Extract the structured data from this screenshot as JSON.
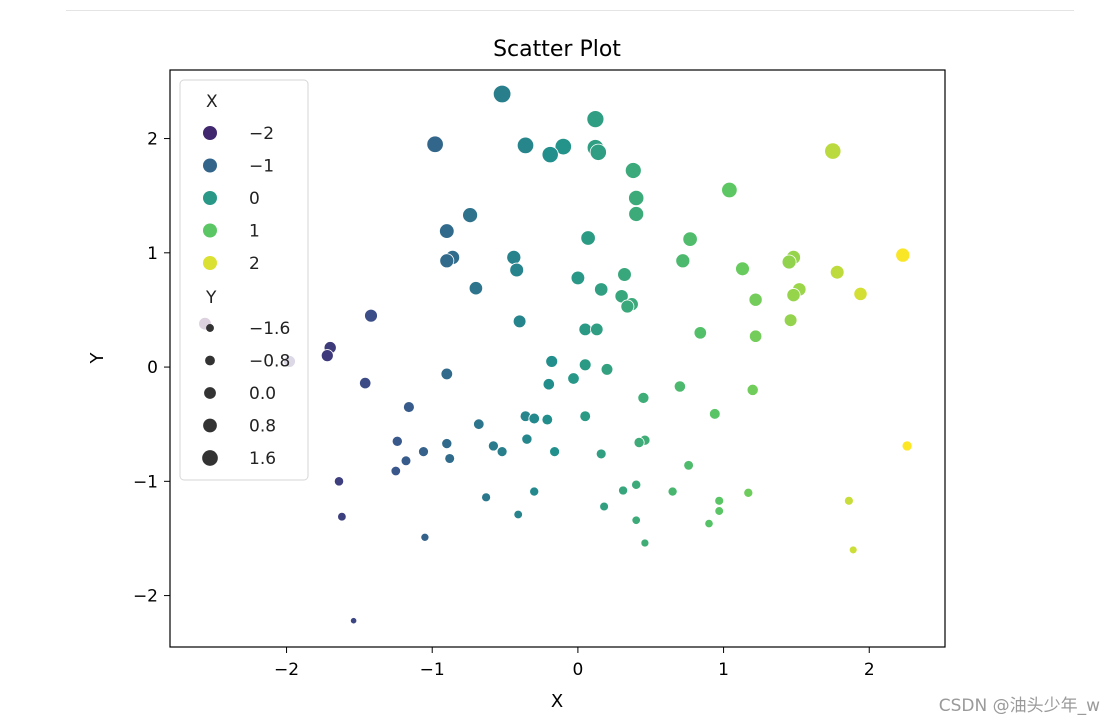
{
  "watermark": "CSDN @油头少年_w",
  "chart_data": {
    "type": "scatter",
    "title": "Scatter Plot",
    "xlabel": "X",
    "ylabel": "Y",
    "xlim": [
      -2.8,
      2.52
    ],
    "ylim": [
      -2.45,
      2.6
    ],
    "xticks": [
      -2,
      -1,
      0,
      1,
      2
    ],
    "yticks": [
      -2,
      -1,
      0,
      1,
      2
    ],
    "tick_labels_x": [
      "−2",
      "−1",
      "0",
      "1",
      "2"
    ],
    "tick_labels_y": [
      "−2",
      "−1",
      "0",
      "1",
      "2"
    ],
    "grid": false,
    "legend_placement": "upper-left",
    "legend": {
      "hue_title": "X",
      "hue_entries": [
        {
          "label": "−2",
          "value": -2
        },
        {
          "label": "−1",
          "value": -1
        },
        {
          "label": "0",
          "value": 0
        },
        {
          "label": "1",
          "value": 1
        },
        {
          "label": "2",
          "value": 2
        }
      ],
      "size_title": "Y",
      "size_entries": [
        {
          "label": "−1.6",
          "value": -1.6
        },
        {
          "label": "−0.8",
          "value": -0.8
        },
        {
          "label": "0.0",
          "value": 0.0
        },
        {
          "label": "0.8",
          "value": 0.8
        },
        {
          "label": "1.6",
          "value": 1.6
        }
      ]
    },
    "hue_by": "x",
    "size_by": "y",
    "colormap": "viridis",
    "points": [
      {
        "x": -0.52,
        "y": 2.39
      },
      {
        "x": 0.12,
        "y": 2.17
      },
      {
        "x": -0.98,
        "y": 1.95
      },
      {
        "x": -0.36,
        "y": 1.94
      },
      {
        "x": -0.1,
        "y": 1.93
      },
      {
        "x": 0.12,
        "y": 1.92
      },
      {
        "x": 0.14,
        "y": 1.88
      },
      {
        "x": -0.19,
        "y": 1.86
      },
      {
        "x": 1.75,
        "y": 1.89
      },
      {
        "x": 0.38,
        "y": 1.72
      },
      {
        "x": 1.04,
        "y": 1.55
      },
      {
        "x": 0.4,
        "y": 1.48
      },
      {
        "x": 0.4,
        "y": 1.34
      },
      {
        "x": -0.74,
        "y": 1.33
      },
      {
        "x": -0.9,
        "y": 1.19
      },
      {
        "x": 0.07,
        "y": 1.13
      },
      {
        "x": 0.77,
        "y": 1.12
      },
      {
        "x": -0.86,
        "y": 0.96
      },
      {
        "x": -0.44,
        "y": 0.96
      },
      {
        "x": -0.9,
        "y": 0.93
      },
      {
        "x": 0.72,
        "y": 0.93
      },
      {
        "x": 1.48,
        "y": 0.96
      },
      {
        "x": 1.45,
        "y": 0.92
      },
      {
        "x": 2.23,
        "y": 0.98
      },
      {
        "x": 1.13,
        "y": 0.86
      },
      {
        "x": -0.42,
        "y": 0.85
      },
      {
        "x": 1.78,
        "y": 0.83
      },
      {
        "x": 0.32,
        "y": 0.81
      },
      {
        "x": 0.0,
        "y": 0.78
      },
      {
        "x": -0.7,
        "y": 0.69
      },
      {
        "x": 0.16,
        "y": 0.68
      },
      {
        "x": 1.52,
        "y": 0.68
      },
      {
        "x": 1.94,
        "y": 0.64
      },
      {
        "x": 1.48,
        "y": 0.63
      },
      {
        "x": 0.3,
        "y": 0.62
      },
      {
        "x": 1.22,
        "y": 0.59
      },
      {
        "x": 0.37,
        "y": 0.55
      },
      {
        "x": 0.34,
        "y": 0.53
      },
      {
        "x": -1.42,
        "y": 0.45
      },
      {
        "x": 1.46,
        "y": 0.41
      },
      {
        "x": -0.4,
        "y": 0.4
      },
      {
        "x": -2.56,
        "y": 0.38
      },
      {
        "x": 0.05,
        "y": 0.33
      },
      {
        "x": 0.13,
        "y": 0.33
      },
      {
        "x": 0.84,
        "y": 0.3
      },
      {
        "x": 1.22,
        "y": 0.27
      },
      {
        "x": -1.7,
        "y": 0.17
      },
      {
        "x": -1.72,
        "y": 0.1
      },
      {
        "x": -1.98,
        "y": 0.05
      },
      {
        "x": -0.18,
        "y": 0.05
      },
      {
        "x": 0.05,
        "y": 0.02
      },
      {
        "x": 0.2,
        "y": -0.02
      },
      {
        "x": -0.9,
        "y": -0.06
      },
      {
        "x": -0.03,
        "y": -0.1
      },
      {
        "x": -1.46,
        "y": -0.14
      },
      {
        "x": -0.2,
        "y": -0.15
      },
      {
        "x": 1.2,
        "y": -0.2
      },
      {
        "x": 0.7,
        "y": -0.17
      },
      {
        "x": 0.45,
        "y": -0.27
      },
      {
        "x": -1.16,
        "y": -0.35
      },
      {
        "x": 0.94,
        "y": -0.41
      },
      {
        "x": -0.36,
        "y": -0.43
      },
      {
        "x": -0.3,
        "y": -0.45
      },
      {
        "x": -0.21,
        "y": -0.46
      },
      {
        "x": 0.05,
        "y": -0.43
      },
      {
        "x": -0.68,
        "y": -0.5
      },
      {
        "x": -0.35,
        "y": -0.63
      },
      {
        "x": 0.46,
        "y": -0.64
      },
      {
        "x": 0.42,
        "y": -0.66
      },
      {
        "x": -1.24,
        "y": -0.65
      },
      {
        "x": -0.9,
        "y": -0.67
      },
      {
        "x": -0.58,
        "y": -0.69
      },
      {
        "x": -1.06,
        "y": -0.74
      },
      {
        "x": -0.52,
        "y": -0.74
      },
      {
        "x": -0.16,
        "y": -0.74
      },
      {
        "x": 0.16,
        "y": -0.76
      },
      {
        "x": -0.88,
        "y": -0.8
      },
      {
        "x": -1.18,
        "y": -0.82
      },
      {
        "x": 0.76,
        "y": -0.86
      },
      {
        "x": -1.25,
        "y": -0.91
      },
      {
        "x": 2.26,
        "y": -0.69
      },
      {
        "x": -1.64,
        "y": -1.0
      },
      {
        "x": 0.4,
        "y": -1.03
      },
      {
        "x": 0.31,
        "y": -1.08
      },
      {
        "x": -0.3,
        "y": -1.09
      },
      {
        "x": 0.65,
        "y": -1.09
      },
      {
        "x": 1.17,
        "y": -1.1
      },
      {
        "x": -0.63,
        "y": -1.14
      },
      {
        "x": 0.97,
        "y": -1.17
      },
      {
        "x": 1.86,
        "y": -1.17
      },
      {
        "x": 0.18,
        "y": -1.22
      },
      {
        "x": 0.97,
        "y": -1.26
      },
      {
        "x": -0.41,
        "y": -1.29
      },
      {
        "x": -1.62,
        "y": -1.31
      },
      {
        "x": 0.4,
        "y": -1.34
      },
      {
        "x": 0.9,
        "y": -1.37
      },
      {
        "x": -1.05,
        "y": -1.49
      },
      {
        "x": 0.46,
        "y": -1.54
      },
      {
        "x": 1.89,
        "y": -1.6
      },
      {
        "x": -1.54,
        "y": -2.22
      }
    ]
  }
}
